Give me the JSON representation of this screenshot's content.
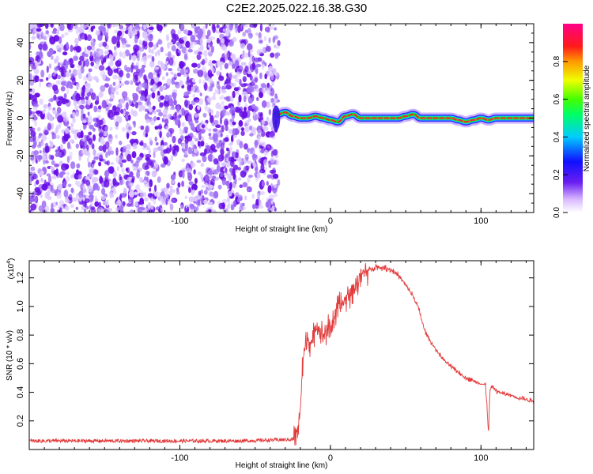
{
  "title": "C2E2.2025.022.16.38.G30",
  "colors": {
    "scatter_purple": "#7a1ee8",
    "snr_red": "#e23b3b",
    "ridge_red": "#ff1e3c",
    "ridge_green": "#22dd22",
    "ridge_blue": "#2020ff"
  },
  "chart_data": [
    {
      "type": "heatmap",
      "xlabel": "Height of straight line (km)",
      "ylabel": "Frequency (Hz)",
      "xlim": [
        -200,
        135
      ],
      "ylim": [
        -50,
        50
      ],
      "xticks": [
        -100,
        0,
        100
      ],
      "yticks": [
        -40,
        -20,
        0,
        20,
        40
      ],
      "noise_region": {
        "x_from": -200,
        "x_to": -35,
        "y_from": -50,
        "y_to": 50
      },
      "ridge": {
        "x": [
          -35,
          -30,
          -25,
          -20,
          -15,
          -10,
          -5,
          0,
          5,
          10,
          15,
          20,
          25,
          30,
          35,
          40,
          45,
          50,
          55,
          60,
          65,
          70,
          75,
          80,
          85,
          90,
          95,
          100,
          105,
          110,
          115,
          120,
          125,
          130,
          135
        ],
        "y": [
          2,
          3,
          1,
          0,
          0,
          1,
          0,
          -1,
          -2,
          1,
          2,
          0,
          0,
          0,
          0,
          0,
          0,
          1,
          2,
          0,
          0,
          0,
          0,
          0,
          -1,
          -2,
          -1,
          0,
          -1,
          0,
          0,
          0,
          0,
          0,
          0
        ]
      },
      "colorbar": {
        "label": "Normalized spectral amplitude",
        "ticks": [
          0.0,
          0.2,
          0.4,
          0.6,
          0.8
        ],
        "range": [
          0,
          1
        ]
      }
    },
    {
      "type": "line",
      "xlabel": "Height of straight line (km)",
      "ylabel": "SNR (10 * v/v)",
      "y_multiplier_label": "(x10",
      "y_multiplier_exp": "4",
      "y_multiplier_close": ")",
      "xlim": [
        -200,
        135
      ],
      "ylim": [
        0,
        1.32
      ],
      "xticks": [
        -100,
        0,
        100
      ],
      "yticks": [
        0.2,
        0.4,
        0.6,
        0.8,
        1.0,
        1.2
      ],
      "series": [
        {
          "x": [
            -200,
            -150,
            -100,
            -60,
            -25,
            -22,
            -20,
            -18,
            -15,
            -12,
            -10,
            -5,
            0,
            5,
            10,
            15,
            20,
            25,
            30,
            35,
            40,
            45,
            50,
            55,
            58,
            60,
            62,
            65,
            70,
            75,
            80,
            85,
            90,
            95,
            100,
            103,
            104,
            105,
            106,
            108,
            110,
            115,
            120,
            125,
            130,
            135
          ],
          "y": [
            0.06,
            0.06,
            0.06,
            0.06,
            0.07,
            0.12,
            0.3,
            0.65,
            0.78,
            0.72,
            0.88,
            0.8,
            0.86,
            0.98,
            1.05,
            1.12,
            1.22,
            1.25,
            1.28,
            1.27,
            1.26,
            1.22,
            1.15,
            1.07,
            1.0,
            0.93,
            0.85,
            0.78,
            0.7,
            0.63,
            0.58,
            0.54,
            0.5,
            0.48,
            0.46,
            0.45,
            0.3,
            0.1,
            0.42,
            0.44,
            0.41,
            0.39,
            0.38,
            0.36,
            0.35,
            0.34
          ]
        }
      ]
    }
  ]
}
